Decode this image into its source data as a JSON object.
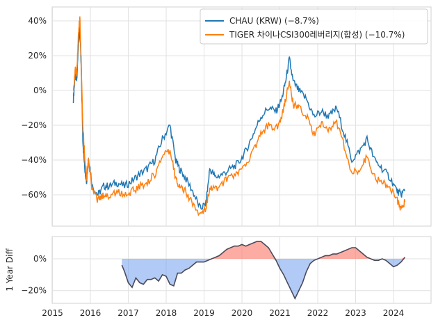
{
  "chart_data": [
    {
      "type": "line",
      "title": "",
      "xlabel": "",
      "ylabel": "",
      "xlim": [
        2014.99,
        2024.99
      ],
      "ylim": [
        -78,
        48
      ],
      "yticks": [
        40,
        20,
        0,
        -20,
        -40,
        -60
      ],
      "ytick_labels": [
        "40%",
        "20%",
        "0%",
        "−20%",
        "−40%",
        "−60%"
      ],
      "grid": true,
      "legend_position": "top-right",
      "series": [
        {
          "name": "CHAU (KRW) (−8.7%)",
          "color": "#1f77b4",
          "x": [
            2015.55,
            2015.6,
            2015.64,
            2015.68,
            2015.72,
            2015.76,
            2015.8,
            2015.85,
            2015.9,
            2015.95,
            2016.05,
            2016.2,
            2016.35,
            2016.5,
            2016.7,
            2016.9,
            2017.1,
            2017.3,
            2017.5,
            2017.7,
            2017.9,
            2018.1,
            2018.25,
            2018.35,
            2018.5,
            2018.7,
            2018.9,
            2019.05,
            2019.15,
            2019.3,
            2019.5,
            2019.7,
            2019.9,
            2020.1,
            2020.3,
            2020.5,
            2020.7,
            2020.9,
            2021.05,
            2021.15,
            2021.25,
            2021.35,
            2021.5,
            2021.7,
            2021.9,
            2022.1,
            2022.3,
            2022.5,
            2022.7,
            2022.9,
            2023.1,
            2023.3,
            2023.5,
            2023.7,
            2023.9,
            2024.1,
            2024.2,
            2024.3
          ],
          "y": [
            -5,
            10,
            5,
            25,
            38,
            10,
            -28,
            -45,
            -52,
            -38,
            -55,
            -60,
            -55,
            -55,
            -53,
            -55,
            -52,
            -48,
            -45,
            -40,
            -28,
            -20,
            -40,
            -45,
            -50,
            -58,
            -68,
            -65,
            -45,
            -50,
            -48,
            -45,
            -42,
            -35,
            -25,
            -15,
            -10,
            -12,
            -5,
            5,
            18,
            5,
            0,
            -5,
            -15,
            -12,
            -15,
            -10,
            -25,
            -40,
            -35,
            -28,
            -40,
            -45,
            -50,
            -58,
            -60,
            -57
          ]
        },
        {
          "name": "TIGER 차이나CSI300레버리지(합성) (−10.7%)",
          "color": "#ff7f0e",
          "x": [
            2015.55,
            2015.6,
            2015.64,
            2015.68,
            2015.72,
            2015.76,
            2015.8,
            2015.85,
            2015.9,
            2015.95,
            2016.05,
            2016.2,
            2016.35,
            2016.5,
            2016.7,
            2016.9,
            2017.1,
            2017.3,
            2017.5,
            2017.7,
            2017.9,
            2018.1,
            2018.25,
            2018.35,
            2018.5,
            2018.7,
            2018.9,
            2019.05,
            2019.15,
            2019.3,
            2019.5,
            2019.7,
            2019.9,
            2020.1,
            2020.3,
            2020.5,
            2020.7,
            2020.9,
            2021.05,
            2021.15,
            2021.25,
            2021.35,
            2021.5,
            2021.7,
            2021.9,
            2022.1,
            2022.3,
            2022.5,
            2022.7,
            2022.9,
            2023.1,
            2023.3,
            2023.5,
            2023.7,
            2023.9,
            2024.1,
            2024.2,
            2024.3
          ],
          "y": [
            0,
            12,
            8,
            30,
            42,
            15,
            -20,
            -38,
            -50,
            -40,
            -58,
            -63,
            -60,
            -61,
            -58,
            -60,
            -58,
            -55,
            -53,
            -48,
            -38,
            -35,
            -50,
            -55,
            -58,
            -65,
            -72,
            -68,
            -55,
            -57,
            -53,
            -50,
            -48,
            -42,
            -35,
            -25,
            -20,
            -22,
            -15,
            -5,
            5,
            -8,
            -10,
            -15,
            -25,
            -20,
            -22,
            -18,
            -32,
            -48,
            -45,
            -38,
            -50,
            -53,
            -55,
            -63,
            -68,
            -64
          ]
        }
      ]
    },
    {
      "type": "area",
      "title": "",
      "xlabel": "",
      "ylabel": "1 Year Diff",
      "xlim": [
        2014.99,
        2024.99
      ],
      "ylim": [
        -28,
        14
      ],
      "yticks": [
        0,
        -20
      ],
      "ytick_labels": [
        "0%",
        "−20%"
      ],
      "xticks": [
        2015,
        2016,
        2017,
        2018,
        2019,
        2020,
        2021,
        2022,
        2023,
        2024
      ],
      "xtick_labels": [
        "2015",
        "2016",
        "2017",
        "2018",
        "2019",
        "2020",
        "2021",
        "2022",
        "2023",
        "2024"
      ],
      "grid": true,
      "positive_color": "#fa8072",
      "negative_color": "#6495ed",
      "line_color": "#4a4a5a",
      "x": [
        2016.83,
        2016.9,
        2017.0,
        2017.1,
        2017.2,
        2017.3,
        2017.4,
        2017.5,
        2017.6,
        2017.7,
        2017.8,
        2017.9,
        2018.0,
        2018.1,
        2018.2,
        2018.3,
        2018.4,
        2018.5,
        2018.6,
        2018.7,
        2018.8,
        2018.9,
        2019.0,
        2019.1,
        2019.2,
        2019.3,
        2019.4,
        2019.5,
        2019.6,
        2019.7,
        2019.8,
        2019.9,
        2020.0,
        2020.1,
        2020.2,
        2020.3,
        2020.4,
        2020.5,
        2020.6,
        2020.7,
        2020.8,
        2020.9,
        2021.0,
        2021.1,
        2021.2,
        2021.3,
        2021.4,
        2021.5,
        2021.6,
        2021.7,
        2021.8,
        2021.9,
        2022.0,
        2022.1,
        2022.2,
        2022.3,
        2022.4,
        2022.5,
        2022.6,
        2022.7,
        2022.8,
        2022.9,
        2023.0,
        2023.1,
        2023.2,
        2023.3,
        2023.4,
        2023.5,
        2023.6,
        2023.7,
        2023.8,
        2023.9,
        2024.0,
        2024.1,
        2024.2,
        2024.3
      ],
      "y": [
        -4,
        -8,
        -15,
        -18,
        -12,
        -15,
        -16,
        -13,
        -13,
        -12,
        -14,
        -10,
        -11,
        -16,
        -17,
        -9,
        -9,
        -7,
        -6,
        -4,
        -2,
        -2,
        -2,
        -1,
        0,
        1,
        2,
        4,
        6,
        7,
        8,
        8,
        9,
        8,
        9,
        10,
        11,
        11,
        9,
        7,
        3,
        -1,
        -6,
        -10,
        -15,
        -20,
        -25,
        -20,
        -15,
        -8,
        -3,
        -1,
        0,
        1,
        2,
        2,
        3,
        3,
        4,
        5,
        6,
        7,
        7,
        5,
        3,
        1,
        0,
        -1,
        -1,
        0,
        -1,
        -3,
        -5,
        -4,
        -2,
        1
      ]
    }
  ]
}
